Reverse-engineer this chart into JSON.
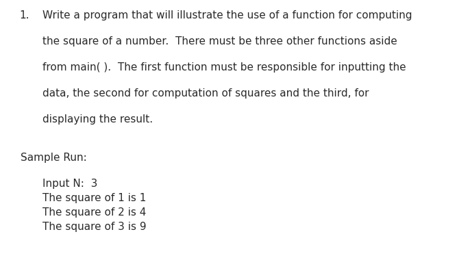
{
  "background_color": "#ffffff",
  "number": "1.",
  "paragraph_lines": [
    "Write a program that will illustrate the use of a function for computing",
    "the square of a number.  There must be three other functions aside",
    "from main( ).  The first function must be responsible for inputting the",
    "data, the second for computation of squares and the third, for",
    "displaying the result."
  ],
  "sample_run_label": "Sample Run:",
  "sample_run_lines": [
    "Input N:  3",
    "The square of 1 is 1",
    "The square of 2 is 4",
    "The square of 3 is 9"
  ],
  "body_fontsize": 11.0,
  "sample_fontsize": 11.0,
  "number_fontsize": 11.0,
  "text_color": "#2a2a2a",
  "font_family": "Arial Narrow"
}
